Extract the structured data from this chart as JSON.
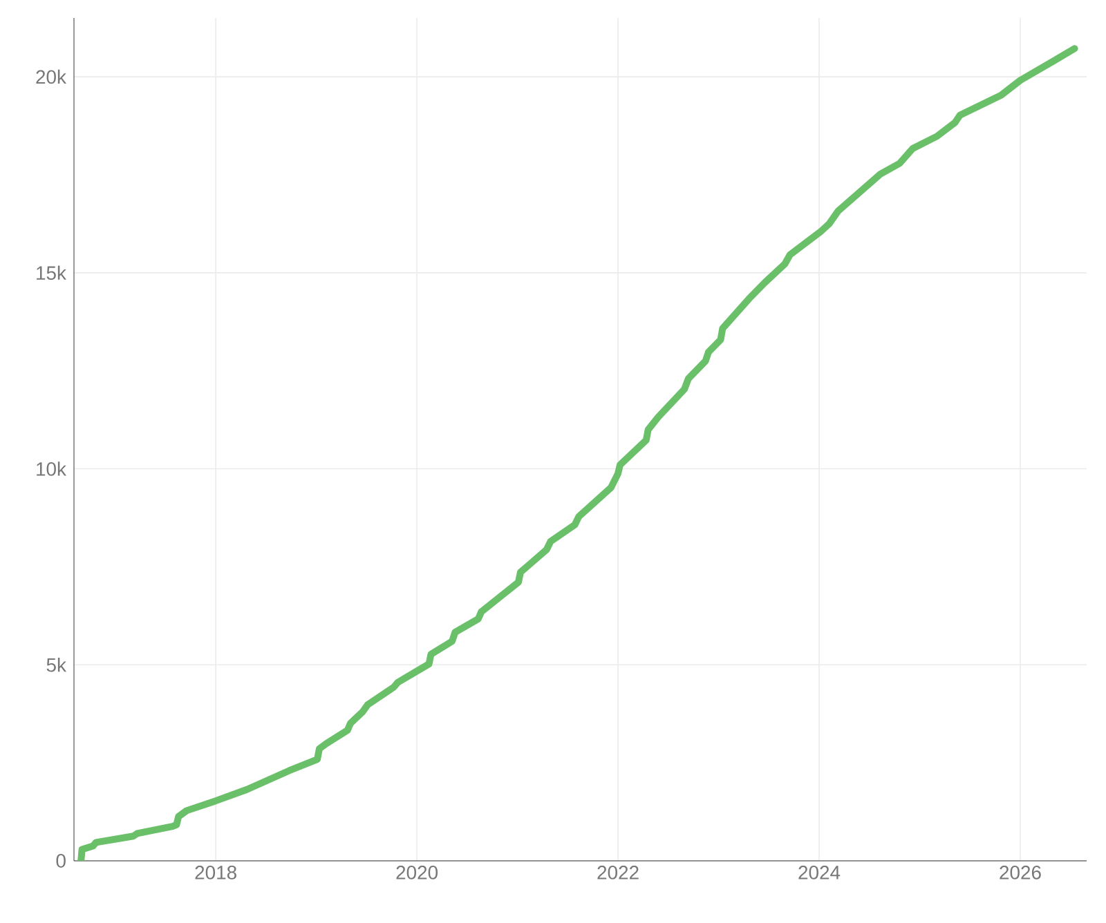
{
  "chart_data": {
    "type": "line",
    "color": "#6abf69",
    "grid": true,
    "marker": "none",
    "line_style": "solid",
    "xlim": [
      2016.59,
      2026.66
    ],
    "ylim": [
      0,
      21500
    ],
    "xticks": [
      2018,
      2020,
      2022,
      2024,
      2026
    ],
    "yticks": [
      {
        "value": 0,
        "label": "0"
      },
      {
        "value": 5000,
        "label": "5k"
      },
      {
        "value": 10000,
        "label": "10k"
      },
      {
        "value": 15000,
        "label": "15k"
      },
      {
        "value": 20000,
        "label": "20k"
      }
    ],
    "x": [
      2016.66,
      2016.67,
      2016.78,
      2016.81,
      2017.18,
      2017.22,
      2017.57,
      2017.61,
      2017.63,
      2017.71,
      2018.0,
      2018.31,
      2018.73,
      2019.01,
      2019.03,
      2019.1,
      2019.31,
      2019.34,
      2019.46,
      2019.51,
      2019.77,
      2019.81,
      2020.0,
      2020.12,
      2020.14,
      2020.35,
      2020.38,
      2020.61,
      2020.64,
      2021.01,
      2021.03,
      2021.29,
      2021.33,
      2021.57,
      2021.61,
      2021.93,
      2022.0,
      2022.02,
      2022.28,
      2022.3,
      2022.4,
      2022.66,
      2022.7,
      2022.87,
      2022.9,
      2023.02,
      2023.04,
      2023.3,
      2023.46,
      2023.66,
      2023.71,
      2024.01,
      2024.1,
      2024.19,
      2024.61,
      2024.8,
      2024.93,
      2025.17,
      2025.35,
      2025.4,
      2025.81,
      2026.0,
      2026.33,
      2026.54
    ],
    "values": [
      0,
      290,
      380,
      470,
      630,
      700,
      880,
      920,
      1130,
      1280,
      1530,
      1820,
      2300,
      2590,
      2860,
      2990,
      3330,
      3510,
      3800,
      3980,
      4430,
      4550,
      4840,
      5020,
      5270,
      5600,
      5830,
      6170,
      6350,
      7110,
      7360,
      7940,
      8150,
      8570,
      8780,
      9520,
      9880,
      10100,
      10730,
      11000,
      11320,
      12030,
      12300,
      12750,
      12980,
      13290,
      13580,
      14330,
      14750,
      15230,
      15460,
      16040,
      16250,
      16580,
      17520,
      17790,
      18170,
      18480,
      18830,
      19020,
      19530,
      19910,
      20400,
      20720
    ]
  }
}
